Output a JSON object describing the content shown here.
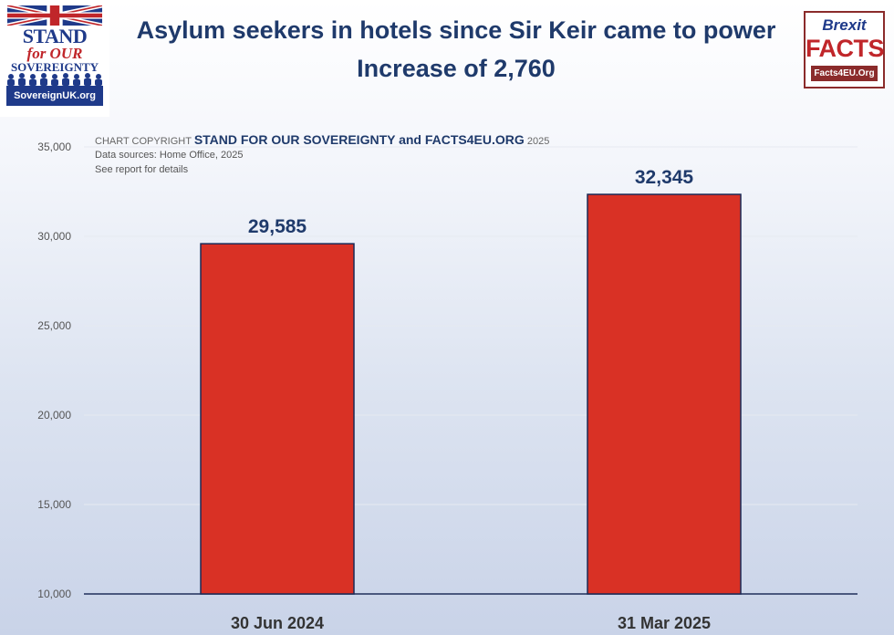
{
  "header": {
    "title": "Asylum seekers in hotels since Sir Keir came to power",
    "subtitle": "Increase of 2,760"
  },
  "logos": {
    "left": {
      "line1": "STAND",
      "line2": "for OUR",
      "line3": "SOVEREIGNTY",
      "url": "SovereignUK.org"
    },
    "right": {
      "line1": "Brexit",
      "line2": "FACTS",
      "url": "Facts4EU.Org"
    }
  },
  "annotations": {
    "copyright_prefix": "CHART COPYRIGHT",
    "copyright_owners": "STAND FOR OUR SOVEREIGNTY and  FACTS4EU.ORG",
    "copyright_year": "2025",
    "sources": "Data sources: Home Office, 2025",
    "details": "See report for details"
  },
  "chart_data": {
    "type": "bar",
    "title": "Asylum seekers in hotels since Sir Keir came to power",
    "subtitle": "Increase of 2,760",
    "categories": [
      "30 Jun 2024",
      "31 Mar 2025"
    ],
    "values": [
      29585,
      32345
    ],
    "value_labels": [
      "29,585",
      "32,345"
    ],
    "ylim": [
      10000,
      35000
    ],
    "yticks": [
      10000,
      15000,
      20000,
      25000,
      30000,
      35000
    ],
    "ytick_labels": [
      "10,000",
      "15,000",
      "20,000",
      "25,000",
      "30,000",
      "35,000"
    ],
    "grid": true,
    "legend": "none",
    "colors": {
      "bar": "#d93125",
      "bar_border": "#1b2a57",
      "title": "#1f3a6b",
      "grid": "#e6eaf1",
      "axis": "#1f2e5a"
    }
  }
}
